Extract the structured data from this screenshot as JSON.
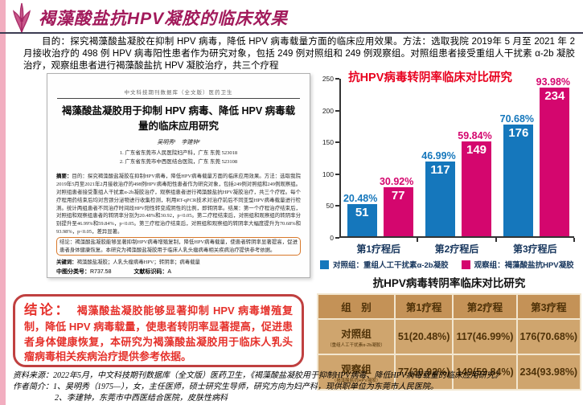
{
  "icons": {
    "logo": "flower-logo-icon"
  },
  "page": {
    "title": "褐藻酸盐抗HPV凝胶的临床效果",
    "intro": "目的：探究褐藻酸盐凝胶在抑制 HPV 病毒，降低 HPV 病毒载量方面的临床应用效果。方法：选取我院 2019年 5 月至 2021 年 2 月接收治疗的 498 例 HPV 病毒阳性患者作为研究对象，包括 249 例对照组和 249 例观察组。对照组患者接受重组人干扰素 α-2b 凝胶治疗，观察组患者进行褐藻酸盐抗 HPV 凝胶治疗，共三个疗程"
  },
  "document": {
    "header": "中文科技期刊数据库（全文版）医药卫生",
    "title": "褐藻酸盐凝胶用于抑制 HPV 病毒、降低 HPV 病毒载量的临床应用研究",
    "authors": "吴明秀¹　李建钟²",
    "affiliation1": "1. 广东省东莞市人民医院妇产科，广东 东莞 523018",
    "affiliation2": "2. 广东省东莞市中西医结合医院，广东 东莞 523108",
    "abstract_label": "摘要：",
    "abstract_main": "目的：探究褐藻酸盐凝胶在抑制HPV病毒，降低HPV病毒载量方面的临床应用效果。方法：选取我院2019年5月至2021年2月接收治疗的498例HPV病毒阳性患者作为研究对象，包括249例对照组和249例观察组。对照组患者接受重组人干扰素α-2b凝胶治疗，观察组患者进行褐藻酸盐抗HPV凝胶治疗，共三个疗程。每个疗程用药结束后均对宫颈分泌物进行收集检测，利用RT-qPCR技术对治疗前后不同亚型HPV病毒载量进行检测。统计两组患者不同治疗时间段HPV阳性转变成阴性的比例，即转阴率。结果：第一个疗程治疗结束后，对照组和观察组患者的转阴率分别为20.48%和30.92，p<0.05。第二疗程结束后，对照组和观察组的转阴率分别提升至46.99%和59.84%，p<0.05。第三疗程治疗结束后，对照组和观察组的转阴率大幅度提升为70.68%和93.98%，p<0.05，差异显著。",
    "abstract_conclusion": "结论：褐藻酸盐凝胶能够显著抑制HPV病毒增殖复制，降低HPV病毒载量，使患者转阴率显著提高，促进患者身体健康恢复。本研究为褐藻酸盐凝胶用于临床人乳头瘤病毒相关疾病治疗提供参考依据。",
    "keywords_label": "关键词：",
    "keywords": "褐藻酸盐凝胶；人乳头瘤病毒HPV；转阴率；病毒载量",
    "clc_label": "中图分类号：",
    "clc": "R737.58",
    "doc_code_label": "文献标识码：",
    "doc_code": "A"
  },
  "chart_data": {
    "type": "bar",
    "title": "抗HPV病毒转阴率临床对比研究",
    "categories": [
      "第1疗程后",
      "第2疗程后",
      "第3疗程后"
    ],
    "series": [
      {
        "name": "对照组：重组人工干扰素α-2b凝胶",
        "color": "#1577BC",
        "values": [
          51,
          117,
          176
        ],
        "pct_labels": [
          "20.48%",
          "46.99%",
          "70.68%"
        ]
      },
      {
        "name": "观察组：褐藻酸盐抗HPV凝胶",
        "color": "#D4066E",
        "values": [
          77,
          149,
          234
        ],
        "pct_labels": [
          "30.92%",
          "59.84%",
          "93.98%"
        ]
      }
    ],
    "ylim": [
      0,
      250
    ],
    "yticks": [
      0,
      50,
      100,
      150,
      200,
      250
    ],
    "legend_position": "bottom",
    "grid": false
  },
  "table": {
    "title": "抗HPV病毒转阴率临床对比研究",
    "headers": [
      "组　别",
      "第1疗程",
      "第2疗程",
      "第3疗程"
    ],
    "rows": [
      {
        "label": "对照组",
        "sublabel": "（重组人工干扰素α-2b凝胶）",
        "values": [
          "51(20.48%)",
          "117(46.99%)",
          "176(70.68%)"
        ]
      },
      {
        "label": "观察组",
        "sublabel": "（褐藻酸盐抗HPV凝胶）",
        "values": [
          "77(30.92%)",
          "149(59.84%)",
          "234(93.98%)"
        ]
      }
    ]
  },
  "conclusion": {
    "label": "结论：",
    "text": "褐藻酸盐凝胶能够显著抑制 HPV 病毒增殖复制，降低 HPV 病毒载量，使患者转阴率显著提高，促进患者身体健康恢复，本研究为褐藻酸盐凝胶用于临床人乳头瘤病毒相关疾病治疗提供参考依据。"
  },
  "footer": {
    "line1": "资料来源：2022年5月，中文科技期刊数据库（全文版）医药卫生，《褐藻酸盐凝胶用于抑制HPV病毒、降低HPV病毒载量的临床应用研究》",
    "line2": "作者简介：1、吴明秀（1975—），女，主任医师，硕士研究生导师，研究方向为妇产科，现供职单位为东莞市人民医院。",
    "line3": "2、李建钟，东莞市中西医结合医院，皮肤性病科"
  },
  "colors": {
    "accent_title": "#A21A5B",
    "chart_title_red": "#E8001E",
    "control_bar_blue": "#1577BC",
    "observation_bar_pink": "#D4066E",
    "table_header_bg": "#C49257",
    "table_row_bg": "#CFA56E",
    "conclusion_red": "#E5312B",
    "left_strip_pink": "#F2AEC0"
  }
}
